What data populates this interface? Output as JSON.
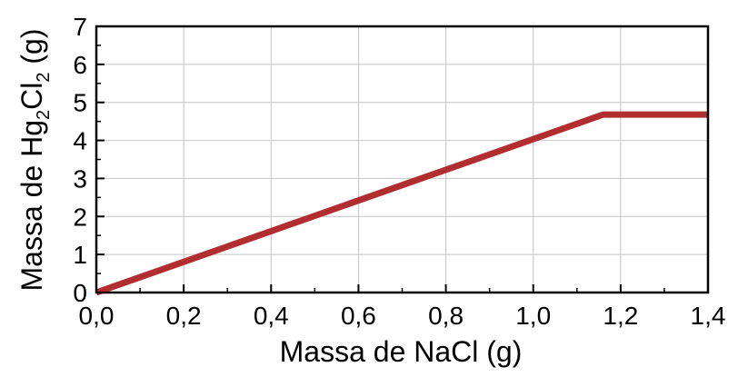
{
  "chart_data": {
    "type": "line",
    "xlabel": "Massa de NaCl (g)",
    "ylabel_parts": {
      "prefix": "Massa de Hg",
      "sub1": "2",
      "mid": "Cl",
      "sub2": "2",
      "suffix": " (g)"
    },
    "xlim": [
      0,
      1.4
    ],
    "ylim": [
      0,
      7
    ],
    "x_ticks": [
      0.0,
      0.2,
      0.4,
      0.6,
      0.8,
      1.0,
      1.2,
      1.4
    ],
    "x_tick_labels": [
      "0,0",
      "0,2",
      "0,4",
      "0,6",
      "0,8",
      "1,0",
      "1,2",
      "1,4"
    ],
    "y_ticks": [
      0,
      1,
      2,
      3,
      4,
      5,
      6,
      7
    ],
    "y_tick_labels": [
      "0",
      "1",
      "2",
      "3",
      "4",
      "5",
      "6",
      "7"
    ],
    "grid": true,
    "series": [
      {
        "color": "#b12d2f",
        "x": [
          0.0,
          1.16,
          1.4
        ],
        "y": [
          0.0,
          4.68,
          4.68
        ]
      }
    ]
  }
}
